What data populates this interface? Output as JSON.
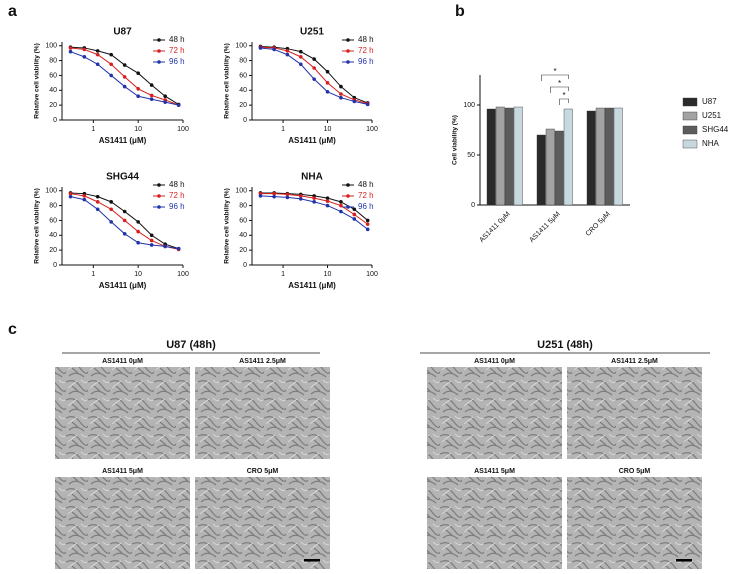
{
  "panel_labels": [
    "a",
    "b",
    "c"
  ],
  "chart_data": [
    {
      "type": "line",
      "title": "U87",
      "xlabel": "AS1411 (μM)",
      "ylabel": "Relative cell viability (%)",
      "xscale": "log",
      "x": [
        0.31,
        0.63,
        1.25,
        2.5,
        5,
        10,
        20,
        40,
        80
      ],
      "xlim": [
        0.2,
        100
      ],
      "xticks": [
        1,
        10,
        100
      ],
      "ylim": [
        0,
        105
      ],
      "yticks": [
        0,
        20,
        40,
        60,
        80,
        100
      ],
      "series": [
        {
          "name": "48 h",
          "color": "#111111",
          "values": [
            98,
            97,
            93,
            88,
            74,
            63,
            47,
            32,
            21
          ]
        },
        {
          "name": "72 h",
          "color": "#d62020",
          "values": [
            97,
            95,
            88,
            75,
            58,
            42,
            33,
            27,
            20
          ]
        },
        {
          "name": "96 h",
          "color": "#2233aa",
          "values": [
            92,
            85,
            75,
            60,
            45,
            32,
            28,
            24,
            20
          ]
        }
      ]
    },
    {
      "type": "line",
      "title": "U251",
      "xlabel": "AS1411 (μM)",
      "ylabel": "Relative cell viability (%)",
      "xscale": "log",
      "x": [
        0.31,
        0.63,
        1.25,
        2.5,
        5,
        10,
        20,
        40,
        80
      ],
      "xlim": [
        0.2,
        100
      ],
      "xticks": [
        1,
        10,
        100
      ],
      "ylim": [
        0,
        105
      ],
      "yticks": [
        0,
        20,
        40,
        60,
        80,
        100
      ],
      "series": [
        {
          "name": "48 h",
          "color": "#111111",
          "values": [
            99,
            98,
            96,
            92,
            82,
            65,
            45,
            30,
            23
          ]
        },
        {
          "name": "72 h",
          "color": "#d62020",
          "values": [
            98,
            97,
            93,
            85,
            70,
            50,
            35,
            27,
            22
          ]
        },
        {
          "name": "96 h",
          "color": "#2233aa",
          "values": [
            97,
            95,
            88,
            75,
            55,
            38,
            30,
            25,
            21
          ]
        }
      ]
    },
    {
      "type": "line",
      "title": "SHG44",
      "xlabel": "AS1411 (μM)",
      "ylabel": "Relative cell viability (%)",
      "xscale": "log",
      "x": [
        0.31,
        0.63,
        1.25,
        2.5,
        5,
        10,
        20,
        40,
        80
      ],
      "xlim": [
        0.2,
        100
      ],
      "xticks": [
        1,
        10,
        100
      ],
      "ylim": [
        0,
        105
      ],
      "yticks": [
        0,
        20,
        40,
        60,
        80,
        100
      ],
      "series": [
        {
          "name": "48 h",
          "color": "#111111",
          "values": [
            97,
            96,
            92,
            85,
            72,
            58,
            40,
            28,
            22
          ]
        },
        {
          "name": "72 h",
          "color": "#d62020",
          "values": [
            96,
            93,
            85,
            75,
            60,
            45,
            33,
            25,
            21
          ]
        },
        {
          "name": "96 h",
          "color": "#2233aa",
          "values": [
            92,
            88,
            75,
            58,
            42,
            30,
            27,
            25,
            22
          ]
        }
      ]
    },
    {
      "type": "line",
      "title": "NHA",
      "xlabel": "AS1411 (μM)",
      "ylabel": "Relative cell viability (%)",
      "xscale": "log",
      "x": [
        0.31,
        0.63,
        1.25,
        2.5,
        5,
        10,
        20,
        40,
        80
      ],
      "xlim": [
        0.2,
        100
      ],
      "xticks": [
        1,
        10,
        100
      ],
      "ylim": [
        0,
        105
      ],
      "yticks": [
        0,
        20,
        40,
        60,
        80,
        100
      ],
      "series": [
        {
          "name": "48 h",
          "color": "#111111",
          "values": [
            97,
            97,
            96,
            95,
            93,
            90,
            85,
            75,
            60
          ]
        },
        {
          "name": "72 h",
          "color": "#d62020",
          "values": [
            96,
            96,
            95,
            93,
            90,
            86,
            80,
            68,
            55
          ]
        },
        {
          "name": "96 h",
          "color": "#2233aa",
          "values": [
            93,
            92,
            91,
            89,
            85,
            80,
            72,
            62,
            48
          ]
        }
      ]
    },
    {
      "type": "bar",
      "ylabel": "Cell viability (%)",
      "categories": [
        "AS1411 0μM",
        "AS1411 5μM",
        "CRO 5μM"
      ],
      "ylim": [
        0,
        130
      ],
      "yticks": [
        0,
        50,
        100
      ],
      "annotations": [
        "*",
        "*",
        "*"
      ],
      "series": [
        {
          "name": "U87",
          "color": "#2b2b2b",
          "values": [
            96,
            70,
            94
          ]
        },
        {
          "name": "U251",
          "color": "#a3a3a3",
          "values": [
            98,
            76,
            97
          ]
        },
        {
          "name": "SHG44",
          "color": "#5c5c5c",
          "values": [
            97,
            74,
            97
          ]
        },
        {
          "name": "NHA",
          "color": "#c8d8df",
          "values": [
            98,
            96,
            97
          ]
        }
      ]
    }
  ],
  "micrographs": [
    {
      "title": "U87 (48h)",
      "images": [
        "AS1411 0μM",
        "AS1411 2.5μM",
        "AS1411 5μM",
        "CRO 5μM"
      ]
    },
    {
      "title": "U251 (48h)",
      "images": [
        "AS1411 0μM",
        "AS1411 2.5μM",
        "AS1411 5μM",
        "CRO 5μM"
      ]
    }
  ]
}
